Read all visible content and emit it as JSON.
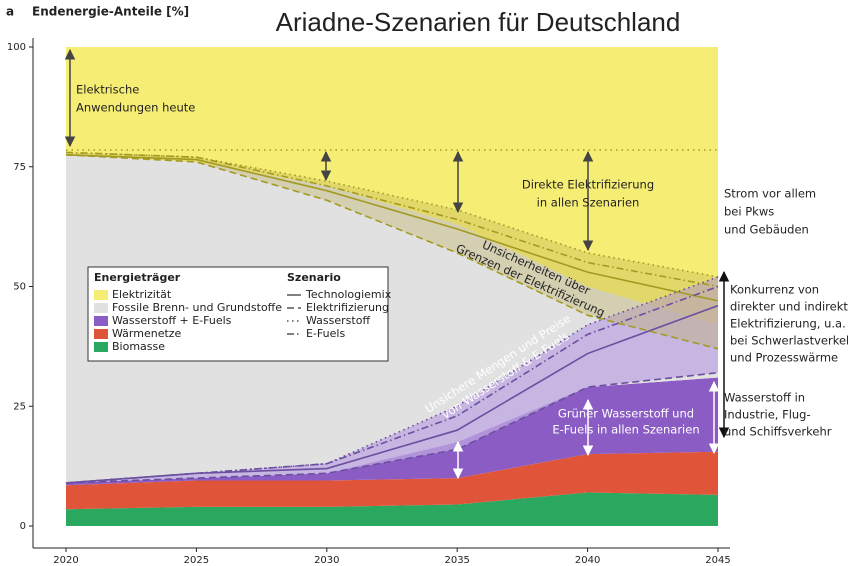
{
  "chart_data": {
    "type": "area",
    "panel_label": "a",
    "ylabel": "Endenergie-Anteile [%]",
    "title": "Ariadne-Szenarien für Deutschland",
    "x": [
      2020,
      2025,
      2030,
      2035,
      2040,
      2045
    ],
    "xlim": [
      2020,
      2045
    ],
    "xticks": [
      2020,
      2025,
      2030,
      2035,
      2040,
      2045
    ],
    "ylim": [
      0,
      100
    ],
    "yticks": [
      0,
      25,
      50,
      75,
      100
    ],
    "legend_titles": {
      "energy": "Energieträger",
      "scenario": "Szenario"
    },
    "series": [
      {
        "name": "Elektrizität",
        "color": "#f6ee74",
        "values": [
          22.5,
          24,
          29,
          37,
          50,
          58
        ]
      },
      {
        "name": "Fossile Brenn- und Grundstoffe",
        "color": "#e1e1e1",
        "values": [
          68.5,
          66,
          60,
          45.5,
          21,
          11
        ]
      },
      {
        "name": "Wasserstoff + E-Fuels",
        "color": "#8a5cc4",
        "values": [
          0.5,
          0.5,
          1.5,
          7.5,
          14,
          15.5
        ]
      },
      {
        "name": "Wärmenetze",
        "color": "#e0553a",
        "values": [
          5,
          5.5,
          5.5,
          5.5,
          8,
          9
        ]
      },
      {
        "name": "Biomasse",
        "color": "#2aa860",
        "values": [
          3.5,
          4,
          4,
          4.5,
          7,
          6.5
        ]
      }
    ],
    "electricity_line_color": "#a39a22",
    "hydrogen_line_color": "#6b4fa0",
    "reference_line": 78.5,
    "scenarios": [
      {
        "name": "Technologiemix",
        "dash": "solid",
        "electricity_boundary": [
          77.5,
          76.5,
          70,
          62,
          53,
          47
        ],
        "hydrogen_boundary": [
          9,
          11,
          12,
          20,
          36,
          46
        ]
      },
      {
        "name": "Elektrifizierung",
        "dash": "dashed",
        "electricity_boundary": [
          77.5,
          76,
          68,
          57,
          44,
          37
        ],
        "hydrogen_boundary": [
          9,
          10,
          11,
          16,
          29,
          32
        ]
      },
      {
        "name": "Wasserstoff",
        "dash": "dotted",
        "electricity_boundary": [
          78,
          77,
          72,
          66,
          57,
          52
        ],
        "hydrogen_boundary": [
          9,
          11,
          13,
          25,
          42,
          52
        ]
      },
      {
        "name": "E-Fuels",
        "dash": "dashdot",
        "electricity_boundary": [
          78,
          77,
          71,
          64,
          55,
          50
        ],
        "hydrogen_boundary": [
          9,
          11,
          13,
          23,
          40,
          50
        ]
      }
    ],
    "annotations": [
      {
        "lines": [
          "Elektrische",
          "Anwendungen heute"
        ]
      },
      {
        "lines": [
          "Direkte Elektrifizierung",
          "in allen Szenarien"
        ]
      },
      {
        "lines": [
          "Unsicherheiten über",
          "Grenzen der Elektrifizierung"
        ]
      },
      {
        "lines": [
          "Unsichere Mengen und Preise",
          "von Wasserstoff & E-Fuels"
        ]
      },
      {
        "lines": [
          "Grüner Wasserstoff und",
          "E-Fuels  in allen Szenarien"
        ]
      },
      {
        "lines": [
          "Strom vor allem",
          "bei Pkws",
          "und Gebäuden"
        ]
      },
      {
        "lines": [
          "Konkurrenz von",
          "direkter und indirekter",
          "Elektrifizierung, u.a.",
          "bei Schwerlastverkehr",
          "und Prozesswärme"
        ]
      },
      {
        "lines": [
          "Wasserstoff in",
          "Industrie, Flug-",
          "und Schiffsverkehr"
        ]
      }
    ]
  }
}
